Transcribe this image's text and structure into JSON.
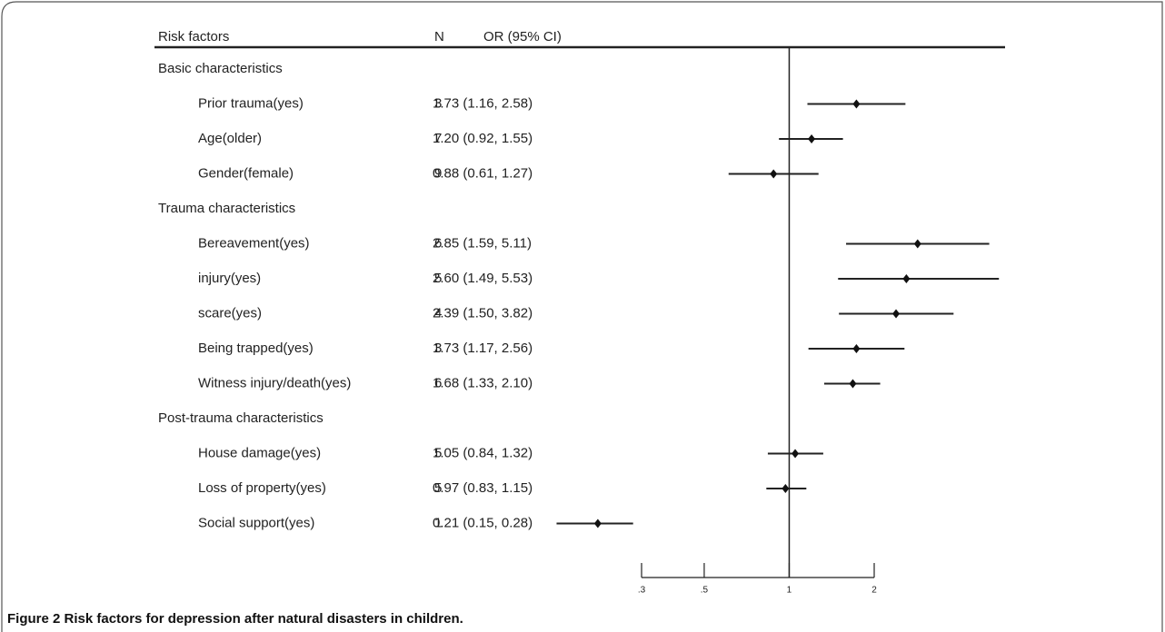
{
  "chart_data": {
    "type": "forest",
    "columns": [
      "Risk factors",
      "N",
      "OR (95% CI)"
    ],
    "caption": "Figure 2 Risk factors for depression after natural disasters in children.",
    "log_scale": true,
    "reference_line": 1,
    "color": "#222222",
    "xlim": [
      0.3,
      2
    ],
    "xticks": [
      {
        "value": 0.3,
        "label": ".3"
      },
      {
        "value": 0.5,
        "label": ".5"
      },
      1,
      2
    ],
    "groups": [
      {
        "name": "Basic characteristics",
        "categories": [
          "Prior trauma(yes)",
          "Age(older)",
          "Gender(female)"
        ],
        "n": [
          3,
          7,
          9
        ],
        "values": [
          1.73,
          1.2,
          0.88
        ],
        "lower": [
          1.16,
          0.92,
          0.61
        ],
        "upper": [
          2.58,
          1.55,
          1.27
        ],
        "value_labels": [
          "1.73 (1.16, 2.58)",
          "1.20 (0.92, 1.55)",
          "0.88 (0.61, 1.27)"
        ]
      },
      {
        "name": "Trauma characteristics",
        "categories": [
          "Bereavement(yes)",
          "injury(yes)",
          "scare(yes)",
          "Being trapped(yes)",
          "Witness injury/death(yes)"
        ],
        "n": [
          6,
          5,
          4,
          3,
          6
        ],
        "values": [
          2.85,
          2.6,
          2.39,
          1.73,
          1.68
        ],
        "lower": [
          1.59,
          1.49,
          1.5,
          1.17,
          1.33
        ],
        "upper": [
          5.11,
          5.53,
          3.82,
          2.56,
          2.1
        ],
        "value_labels": [
          "2.85 (1.59, 5.11)",
          "2.60 (1.49, 5.53)",
          "2.39 (1.50, 3.82)",
          "1.73 (1.17, 2.56)",
          "1.68 (1.33, 2.10)"
        ]
      },
      {
        "name": "Post-trauma characteristics",
        "categories": [
          "House damage(yes)",
          "Loss of property(yes)",
          "Social support(yes)"
        ],
        "n": [
          5,
          5,
          1
        ],
        "values": [
          1.05,
          0.97,
          0.21
        ],
        "lower": [
          0.84,
          0.83,
          0.15
        ],
        "upper": [
          1.32,
          1.15,
          0.28
        ],
        "value_labels": [
          "1.05 (0.84, 1.32)",
          "0.97 (0.83, 1.15)",
          "0.21 (0.15, 0.28)"
        ]
      }
    ]
  }
}
